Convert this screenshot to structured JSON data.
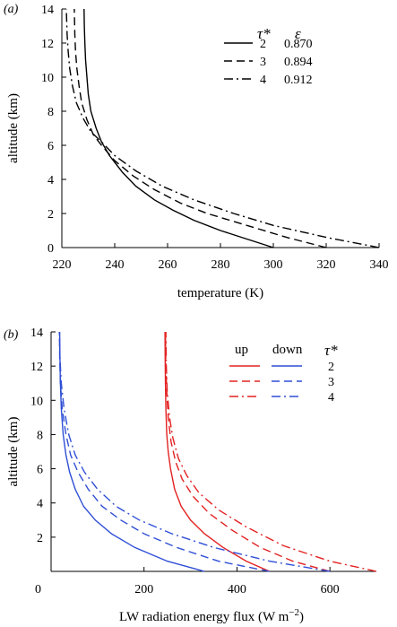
{
  "chart_data": [
    {
      "panel_label": "(a)",
      "type": "line",
      "xlabel": "temperature (K)",
      "ylabel": "altitude (km)",
      "xlim": [
        220,
        340
      ],
      "ylim": [
        0,
        14
      ],
      "xticks": [
        "220",
        "240",
        "260",
        "280",
        "300",
        "320",
        "340"
      ],
      "yticks": [
        "0",
        "2",
        "4",
        "6",
        "8",
        "10",
        "12",
        "14"
      ],
      "legend": {
        "position": "top-right",
        "header_left": "τ*",
        "header_right": "ε",
        "rows": [
          {
            "tau": "2",
            "eps": "0.870",
            "style": "solid"
          },
          {
            "tau": "3",
            "eps": "0.894",
            "style": "dashed"
          },
          {
            "tau": "4",
            "eps": "0.912",
            "style": "dashdot"
          }
        ]
      },
      "series": [
        {
          "style": "solid",
          "color": "#000000",
          "points": [
            [
              300,
              0
            ],
            [
              290,
              0.5
            ],
            [
              280,
              1
            ],
            [
              270,
              1.6
            ],
            [
              262,
              2.2
            ],
            [
              255,
              2.8
            ],
            [
              248,
              3.6
            ],
            [
              243,
              4.4
            ],
            [
              238,
              5.4
            ],
            [
              235,
              6.2
            ],
            [
              233,
              7
            ],
            [
              231,
              8
            ],
            [
              230,
              9
            ],
            [
              229.5,
              10
            ],
            [
              229,
              11
            ],
            [
              228.7,
              12
            ],
            [
              228.5,
              13
            ],
            [
              228.4,
              14
            ]
          ]
        },
        {
          "style": "dashed",
          "color": "#000000",
          "points": [
            [
              320,
              0
            ],
            [
              305,
              0.6
            ],
            [
              290,
              1.3
            ],
            [
              275,
              2
            ],
            [
              265,
              2.6
            ],
            [
              255,
              3.4
            ],
            [
              247,
              4.2
            ],
            [
              240,
              5.1
            ],
            [
              235,
              6
            ],
            [
              232,
              6.6
            ],
            [
              229.5,
              7.5
            ],
            [
              227.5,
              8.5
            ],
            [
              226.5,
              9.5
            ],
            [
              225.7,
              10.5
            ],
            [
              225.2,
              11.5
            ],
            [
              224.9,
              12.5
            ],
            [
              224.7,
              14
            ]
          ]
        },
        {
          "style": "dashdot",
          "color": "#000000",
          "points": [
            [
              340,
              0
            ],
            [
              320,
              0.6
            ],
            [
              300,
              1.3
            ],
            [
              285,
              2
            ],
            [
              270,
              2.8
            ],
            [
              258,
              3.6
            ],
            [
              248,
              4.5
            ],
            [
              240,
              5.4
            ],
            [
              235,
              6.2
            ],
            [
              231,
              6.8
            ],
            [
              228,
              7.6
            ],
            [
              225.5,
              8.5
            ],
            [
              224,
              9.5
            ],
            [
              223,
              10.5
            ],
            [
              222.4,
              11.5
            ],
            [
              222,
              12.5
            ],
            [
              221.7,
              14
            ]
          ]
        }
      ]
    },
    {
      "panel_label": "(b)",
      "type": "line",
      "xlabel": "LW radiation energy flux (W m−2)",
      "ylabel": "altitude (km)",
      "xlim": [
        0,
        700
      ],
      "ylim": [
        0,
        14
      ],
      "xticks": [
        "0",
        "200",
        "400",
        "600"
      ],
      "yticks": [
        "2",
        "4",
        "6",
        "8",
        "10",
        "12",
        "14"
      ],
      "legend": {
        "position": "top-right",
        "header_up": "up",
        "header_down": "down",
        "header_tau": "τ*",
        "rows": [
          {
            "tau": "2",
            "style": "solid"
          },
          {
            "tau": "3",
            "style": "dashed"
          },
          {
            "tau": "4",
            "style": "dashdot"
          }
        ]
      },
      "colors": {
        "up": "#e32222",
        "down": "#2f4fd6"
      },
      "series": [
        {
          "direction": "up",
          "style": "solid",
          "points": [
            [
              470,
              0
            ],
            [
              420,
              0.6
            ],
            [
              370,
              1.4
            ],
            [
              330,
              2.2
            ],
            [
              300,
              3
            ],
            [
              280,
              3.8
            ],
            [
              266,
              4.8
            ],
            [
              257,
              6
            ],
            [
              252,
              7
            ],
            [
              249,
              8
            ],
            [
              247,
              9.5
            ],
            [
              246,
              11
            ],
            [
              245.5,
              12.5
            ],
            [
              245,
              14
            ]
          ]
        },
        {
          "direction": "up",
          "style": "dashed",
          "points": [
            [
              600,
              0
            ],
            [
              520,
              0.6
            ],
            [
              450,
              1.4
            ],
            [
              390,
              2.4
            ],
            [
              340,
              3.4
            ],
            [
              305,
              4.4
            ],
            [
              282,
              5.4
            ],
            [
              268,
              6.4
            ],
            [
              258,
              7.6
            ],
            [
              252,
              9
            ],
            [
              249,
              10.5
            ],
            [
              247,
              12
            ],
            [
              246,
              14
            ]
          ]
        },
        {
          "direction": "up",
          "style": "dashdot",
          "points": [
            [
              700,
              0
            ],
            [
              600,
              0.6
            ],
            [
              500,
              1.5
            ],
            [
              420,
              2.6
            ],
            [
              360,
              3.6
            ],
            [
              318,
              4.6
            ],
            [
              292,
              5.6
            ],
            [
              274,
              6.6
            ],
            [
              262,
              7.8
            ],
            [
              255,
              9
            ],
            [
              250,
              10.5
            ],
            [
              248,
              12
            ],
            [
              247,
              14
            ]
          ]
        },
        {
          "direction": "down",
          "style": "solid",
          "points": [
            [
              330,
              0
            ],
            [
              250,
              0.6
            ],
            [
              180,
              1.4
            ],
            [
              130,
              2.2
            ],
            [
              95,
              3
            ],
            [
              70,
              3.8
            ],
            [
              52,
              4.8
            ],
            [
              40,
              5.8
            ],
            [
              32,
              6.8
            ],
            [
              26,
              8
            ],
            [
              22,
              9.5
            ],
            [
              20,
              11
            ],
            [
              19,
              12.5
            ],
            [
              18.5,
              14
            ]
          ]
        },
        {
          "direction": "down",
          "style": "dashed",
          "points": [
            [
              470,
              0
            ],
            [
              360,
              0.6
            ],
            [
              270,
              1.4
            ],
            [
              200,
              2.2
            ],
            [
              150,
              3
            ],
            [
              110,
              3.8
            ],
            [
              80,
              4.8
            ],
            [
              58,
              5.8
            ],
            [
              42,
              6.8
            ],
            [
              32,
              8
            ],
            [
              24,
              9.5
            ],
            [
              20,
              11
            ],
            [
              18.5,
              12.5
            ],
            [
              18,
              14
            ]
          ]
        },
        {
          "direction": "down",
          "style": "dashdot",
          "points": [
            [
              600,
              0
            ],
            [
              470,
              0.6
            ],
            [
              350,
              1.4
            ],
            [
              260,
              2.2
            ],
            [
              190,
              3
            ],
            [
              140,
              3.8
            ],
            [
              100,
              4.8
            ],
            [
              72,
              5.8
            ],
            [
              52,
              6.8
            ],
            [
              38,
              8
            ],
            [
              28,
              9.5
            ],
            [
              22,
              11
            ],
            [
              19,
              12.5
            ],
            [
              18,
              14
            ]
          ]
        }
      ]
    }
  ]
}
